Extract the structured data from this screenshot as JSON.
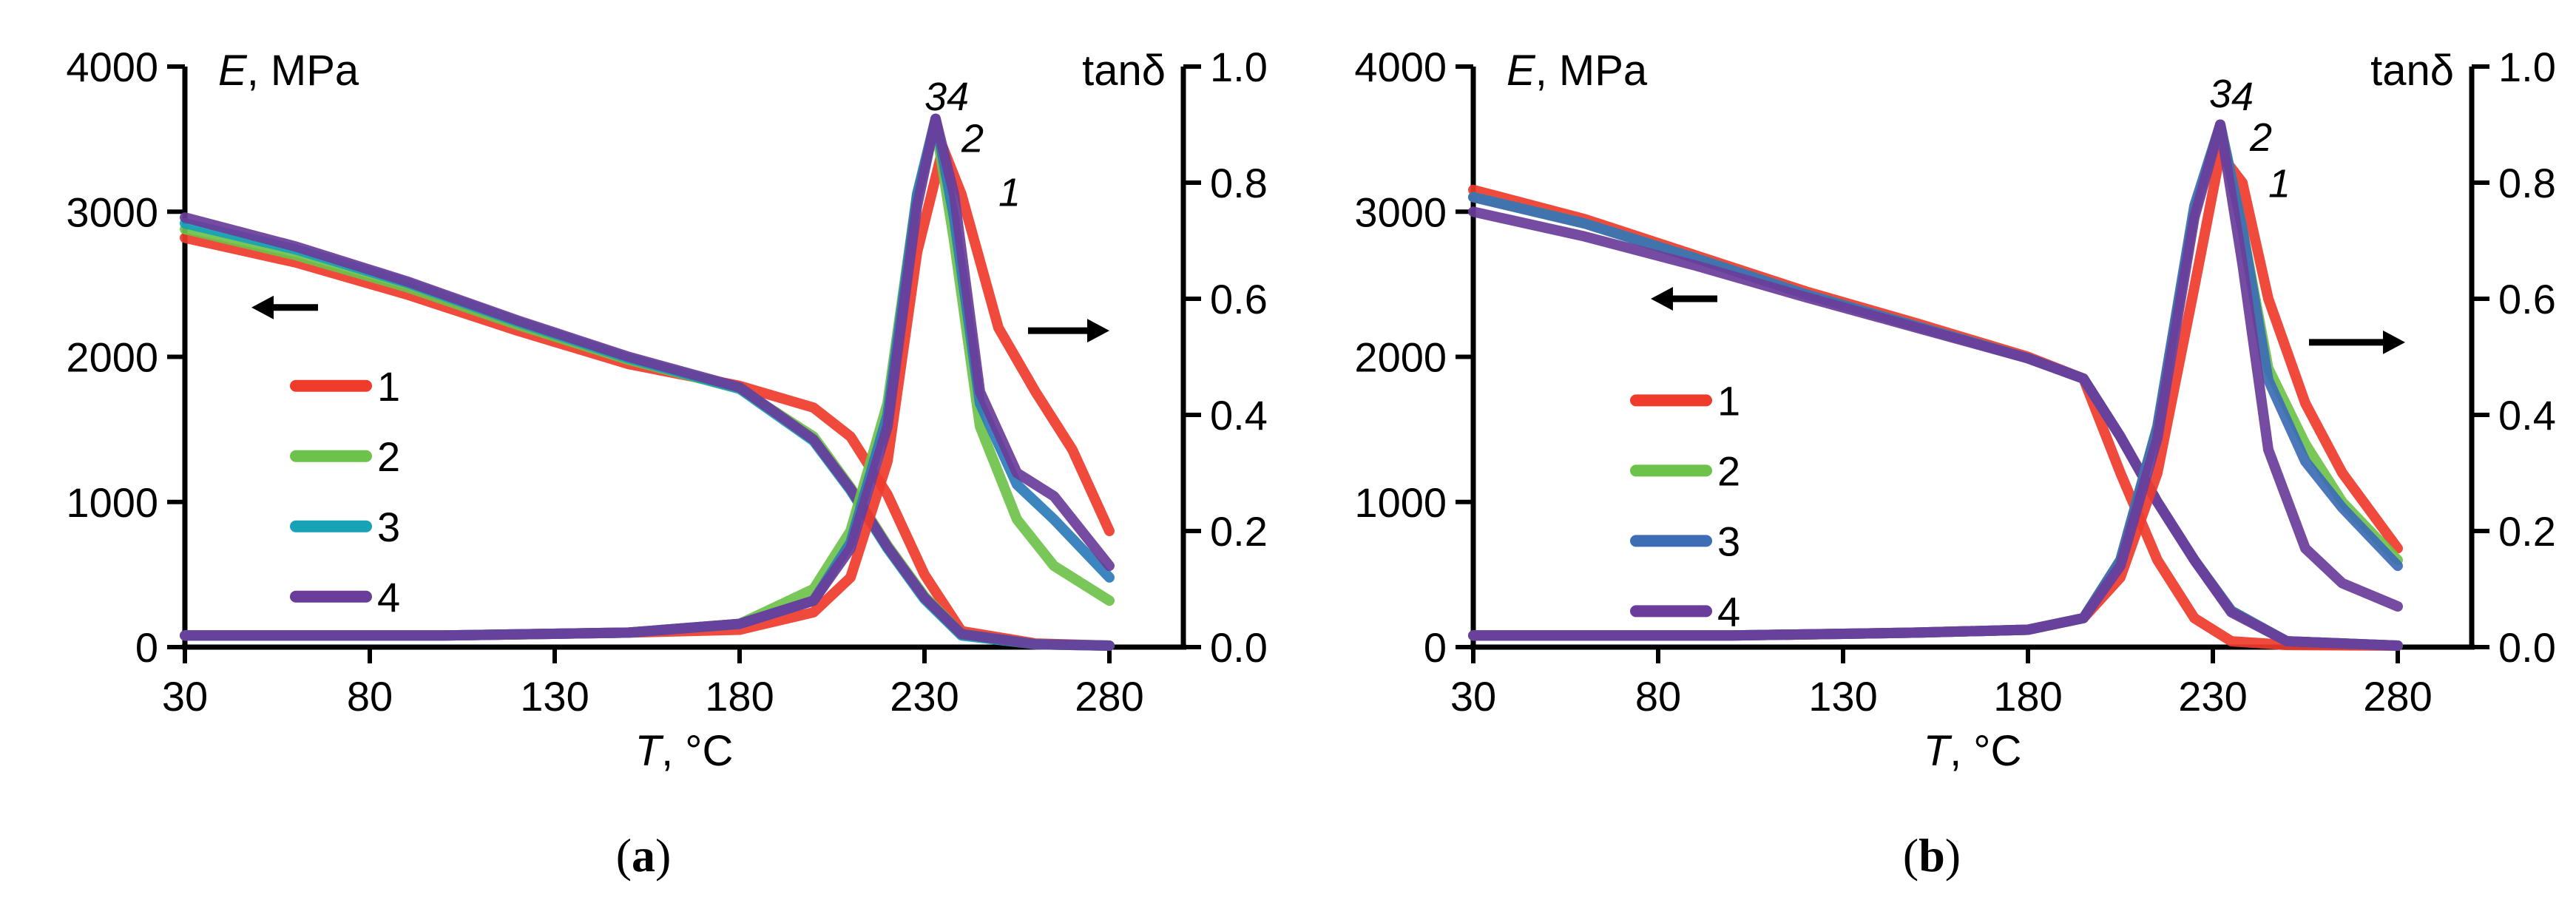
{
  "figure": {
    "series_colors": {
      "1": "#ef3b2c",
      "2": "#6cc24a",
      "3": "#2b7bb9",
      "4": "#6a3d9a"
    }
  },
  "chart_data": [
    {
      "panel_label": "a",
      "type": "line",
      "title": "",
      "xlabel": "T",
      "xunit": ", °C",
      "ylabel_left": "E",
      "ylabel_left_unit": ", MPa",
      "ylabel_right": "tanδ",
      "xlim": [
        30,
        300
      ],
      "ylim_left": [
        0,
        4000
      ],
      "ylim_right": [
        0.0,
        1.0
      ],
      "xticks": [
        30,
        80,
        130,
        180,
        230,
        280
      ],
      "yticks_left": [
        0,
        1000,
        2000,
        3000,
        4000
      ],
      "yticks_right": [
        "0.0",
        "0.2",
        "0.4",
        "0.6",
        "0.8",
        "1.0"
      ],
      "legend": [
        {
          "label": "1",
          "color": "#ef3b2c"
        },
        {
          "label": "2",
          "color": "#6cc24a"
        },
        {
          "label": "3",
          "color": "#17a2b8"
        },
        {
          "label": "4",
          "color": "#6a3d9a"
        }
      ],
      "peak_labels": [
        {
          "text": "3",
          "x": 230,
          "y": 0.925
        },
        {
          "text": "4",
          "x": 236,
          "y": 0.925
        },
        {
          "text": "2",
          "x": 240,
          "y": 0.853
        },
        {
          "text": "1",
          "x": 250,
          "y": 0.76
        }
      ],
      "arrows": [
        {
          "direction": "left",
          "axis": "left",
          "x_from": 66,
          "x_to": 48,
          "y": 0.585
        },
        {
          "direction": "right",
          "axis": "right",
          "x_from": 258,
          "x_to": 280,
          "y": 0.545
        }
      ],
      "modulus_series": [
        {
          "name": "1",
          "color": "#ef3b2c",
          "x": [
            30,
            60,
            90,
            120,
            150,
            180,
            200,
            210,
            220,
            230,
            240,
            260,
            280
          ],
          "y": [
            2820,
            2650,
            2430,
            2180,
            1950,
            1800,
            1650,
            1450,
            1050,
            500,
            110,
            25,
            10
          ]
        },
        {
          "name": "2",
          "color": "#6cc24a",
          "x": [
            30,
            60,
            90,
            120,
            150,
            180,
            200,
            210,
            220,
            230,
            240,
            260,
            280
          ],
          "y": [
            2880,
            2700,
            2480,
            2220,
            1980,
            1780,
            1450,
            1100,
            700,
            350,
            90,
            20,
            10
          ]
        },
        {
          "name": "3",
          "color": "#17a2b8",
          "x": [
            30,
            60,
            90,
            120,
            150,
            180,
            200,
            210,
            220,
            230,
            240,
            260,
            280
          ],
          "y": [
            2920,
            2740,
            2510,
            2240,
            1990,
            1780,
            1420,
            1080,
            680,
            330,
            80,
            20,
            10
          ]
        },
        {
          "name": "4",
          "color": "#6a3d9a",
          "x": [
            30,
            60,
            90,
            120,
            150,
            180,
            200,
            210,
            220,
            230,
            240,
            260,
            280
          ],
          "y": [
            2960,
            2760,
            2520,
            2250,
            2000,
            1790,
            1430,
            1090,
            690,
            340,
            90,
            20,
            10
          ]
        }
      ],
      "tand_series": [
        {
          "name": "1",
          "color": "#ef3b2c",
          "x": [
            30,
            100,
            150,
            180,
            200,
            210,
            220,
            228,
            235,
            240,
            250,
            260,
            270,
            280
          ],
          "y": [
            0.02,
            0.02,
            0.025,
            0.03,
            0.06,
            0.12,
            0.32,
            0.68,
            0.86,
            0.78,
            0.55,
            0.44,
            0.34,
            0.2
          ]
        },
        {
          "name": "2",
          "color": "#6cc24a",
          "x": [
            30,
            100,
            150,
            180,
            200,
            210,
            220,
            228,
            233,
            238,
            245,
            255,
            265,
            280
          ],
          "y": [
            0.02,
            0.02,
            0.025,
            0.04,
            0.1,
            0.2,
            0.42,
            0.78,
            0.9,
            0.7,
            0.38,
            0.22,
            0.14,
            0.08
          ]
        },
        {
          "name": "3",
          "color": "#2b7bb9",
          "x": [
            30,
            100,
            150,
            180,
            200,
            210,
            220,
            228,
            233,
            238,
            245,
            255,
            265,
            280
          ],
          "y": [
            0.02,
            0.02,
            0.025,
            0.04,
            0.08,
            0.18,
            0.4,
            0.78,
            0.91,
            0.74,
            0.42,
            0.28,
            0.22,
            0.12
          ]
        },
        {
          "name": "4",
          "color": "#6a3d9a",
          "x": [
            30,
            100,
            150,
            180,
            200,
            210,
            220,
            228,
            233,
            238,
            245,
            255,
            265,
            280
          ],
          "y": [
            0.02,
            0.02,
            0.025,
            0.04,
            0.08,
            0.17,
            0.38,
            0.76,
            0.91,
            0.78,
            0.44,
            0.3,
            0.26,
            0.14
          ]
        }
      ]
    },
    {
      "panel_label": "b",
      "type": "line",
      "title": "",
      "xlabel": "T",
      "xunit": ", °C",
      "ylabel_left": "E",
      "ylabel_left_unit": ", MPa",
      "ylabel_right": "tanδ",
      "xlim": [
        30,
        300
      ],
      "ylim_left": [
        0,
        4000
      ],
      "ylim_right": [
        0.0,
        1.0
      ],
      "xticks": [
        30,
        80,
        130,
        180,
        230,
        280
      ],
      "yticks_left": [
        0,
        1000,
        2000,
        3000,
        4000
      ],
      "yticks_right": [
        "0.0",
        "0.2",
        "0.4",
        "0.6",
        "0.8",
        "1.0"
      ],
      "legend": [
        {
          "label": "1",
          "color": "#ef3b2c"
        },
        {
          "label": "2",
          "color": "#6cc24a"
        },
        {
          "label": "3",
          "color": "#3d6db5"
        },
        {
          "label": "4",
          "color": "#6a3d9a"
        }
      ],
      "peak_labels": [
        {
          "text": "3",
          "x": 229,
          "y": 0.93
        },
        {
          "text": "4",
          "x": 235,
          "y": 0.925
        },
        {
          "text": "2",
          "x": 240,
          "y": 0.855
        },
        {
          "text": "1",
          "x": 245,
          "y": 0.775
        }
      ],
      "arrows": [
        {
          "direction": "left",
          "axis": "left",
          "x_from": 96,
          "x_to": 78,
          "y": 0.6
        },
        {
          "direction": "right",
          "axis": "right",
          "x_from": 256,
          "x_to": 282,
          "y": 0.525
        }
      ],
      "modulus_series": [
        {
          "name": "1",
          "color": "#ef3b2c",
          "x": [
            30,
            60,
            90,
            120,
            150,
            180,
            195,
            205,
            215,
            225,
            235,
            250,
            280
          ],
          "y": [
            3150,
            2950,
            2700,
            2450,
            2230,
            2000,
            1850,
            1200,
            600,
            200,
            40,
            15,
            10
          ]
        },
        {
          "name": "2",
          "color": "#6cc24a",
          "x": [
            30,
            60,
            90,
            120,
            150,
            180,
            195,
            205,
            215,
            225,
            235,
            250,
            280
          ],
          "y": [
            3100,
            2920,
            2680,
            2430,
            2210,
            1990,
            1850,
            1450,
            1000,
            600,
            250,
            40,
            10
          ]
        },
        {
          "name": "3",
          "color": "#3d6db5",
          "x": [
            30,
            60,
            90,
            120,
            150,
            180,
            195,
            205,
            215,
            225,
            235,
            250,
            280
          ],
          "y": [
            3100,
            2920,
            2680,
            2430,
            2210,
            1990,
            1850,
            1450,
            1000,
            600,
            250,
            40,
            10
          ]
        },
        {
          "name": "4",
          "color": "#6a3d9a",
          "x": [
            30,
            60,
            90,
            120,
            150,
            180,
            195,
            205,
            215,
            225,
            235,
            250,
            280
          ],
          "y": [
            3000,
            2830,
            2630,
            2410,
            2200,
            1990,
            1850,
            1450,
            1000,
            600,
            240,
            40,
            10
          ]
        }
      ],
      "tand_series": [
        {
          "name": "1",
          "color": "#ef3b2c",
          "x": [
            30,
            100,
            150,
            180,
            195,
            205,
            215,
            225,
            232,
            238,
            245,
            255,
            265,
            280
          ],
          "y": [
            0.02,
            0.02,
            0.025,
            0.03,
            0.05,
            0.12,
            0.3,
            0.62,
            0.85,
            0.8,
            0.6,
            0.42,
            0.3,
            0.17
          ]
        },
        {
          "name": "2",
          "color": "#6cc24a",
          "x": [
            30,
            100,
            150,
            180,
            195,
            205,
            215,
            225,
            232,
            238,
            245,
            255,
            265,
            280
          ],
          "y": [
            0.02,
            0.02,
            0.025,
            0.03,
            0.05,
            0.15,
            0.38,
            0.75,
            0.9,
            0.72,
            0.48,
            0.35,
            0.25,
            0.15
          ]
        },
        {
          "name": "3",
          "color": "#3d6db5",
          "x": [
            30,
            100,
            150,
            180,
            195,
            205,
            215,
            225,
            232,
            238,
            245,
            255,
            265,
            280
          ],
          "y": [
            0.02,
            0.02,
            0.025,
            0.03,
            0.05,
            0.15,
            0.38,
            0.76,
            0.9,
            0.72,
            0.46,
            0.32,
            0.24,
            0.14
          ]
        },
        {
          "name": "4",
          "color": "#6a3d9a",
          "x": [
            30,
            100,
            150,
            180,
            195,
            205,
            215,
            225,
            232,
            238,
            245,
            255,
            265,
            280
          ],
          "y": [
            0.02,
            0.02,
            0.025,
            0.03,
            0.05,
            0.14,
            0.36,
            0.74,
            0.9,
            0.66,
            0.34,
            0.17,
            0.11,
            0.07
          ]
        }
      ]
    }
  ]
}
